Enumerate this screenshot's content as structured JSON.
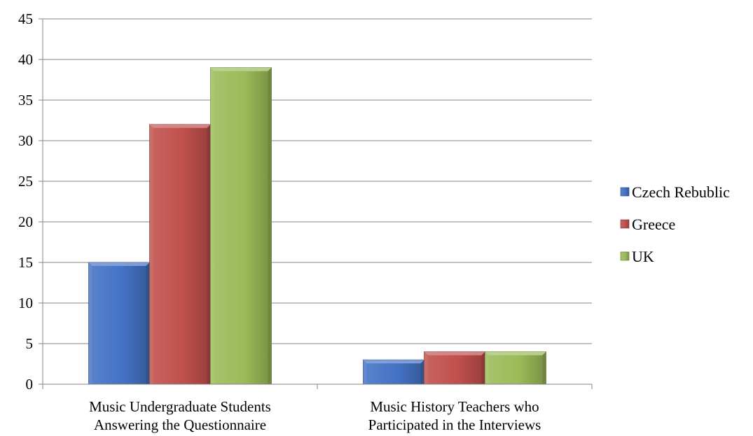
{
  "chart_data": {
    "type": "bar",
    "title": "",
    "xlabel": "",
    "ylabel": "",
    "ylim": [
      0,
      45
    ],
    "yticks": [
      0,
      5,
      10,
      15,
      20,
      25,
      30,
      35,
      40,
      45
    ],
    "grid": true,
    "legend_position": "right",
    "categories": [
      [
        "Music Undergraduate Students",
        "Answering the Questionnaire"
      ],
      [
        "Music History Teachers who",
        "Participated in the Interviews"
      ]
    ],
    "series": [
      {
        "name": "Czech Rebublic",
        "values": [
          15,
          3
        ],
        "color": "#4472c4"
      },
      {
        "name": "Greece",
        "values": [
          32,
          4
        ],
        "color": "#c0504d"
      },
      {
        "name": "UK",
        "values": [
          39,
          4
        ],
        "color": "#9bbb59"
      }
    ]
  }
}
